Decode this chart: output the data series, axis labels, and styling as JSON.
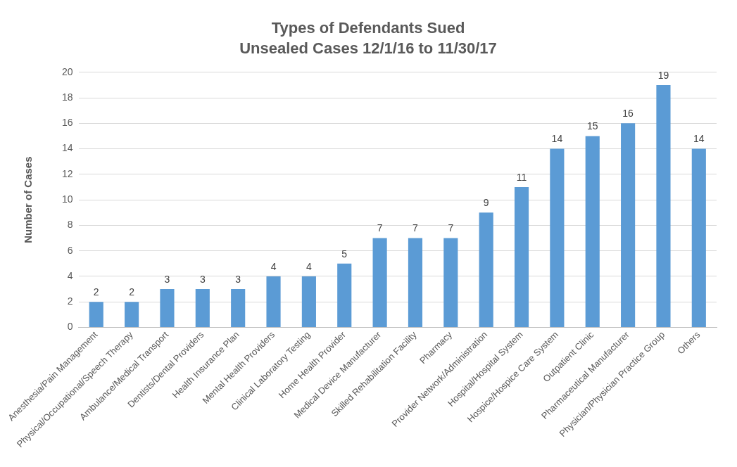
{
  "chart_data": {
    "type": "bar",
    "title": "Types of Defendants Sued",
    "subtitle": "Unsealed Cases 12/1/16 to 11/30/17",
    "ylabel": "Number of Cases",
    "categories": [
      "Anesthesia/Pain Management",
      "Physical/Occupational/Speech Therapy",
      "Ambulance/Medical Transport",
      "Dentists/Dental Providers",
      "Health Insurance Plan",
      "Mental Health Providers",
      "Clinical Laboratory Testing",
      "Home Health Provider",
      "Medical Device Manufacturer",
      "Skilled Rehabilitation Facility",
      "Pharmacy",
      "Provider Network/Administration",
      "Hospital/Hospital System",
      "Hospice/Hospice Care System",
      "Outpatient Clinic",
      "Pharmaceutical Manufacturer",
      "Physician/Physician Practice Group",
      "Others"
    ],
    "values": [
      2,
      2,
      3,
      3,
      3,
      4,
      4,
      5,
      7,
      7,
      7,
      9,
      11,
      14,
      15,
      16,
      19,
      14
    ],
    "color": "#5b9bd5",
    "ylim": [
      0,
      20
    ],
    "yticks": [
      0,
      2,
      4,
      6,
      8,
      10,
      12,
      14,
      16,
      18,
      20
    ],
    "grid": "y",
    "data_labels": true,
    "legend": false
  }
}
